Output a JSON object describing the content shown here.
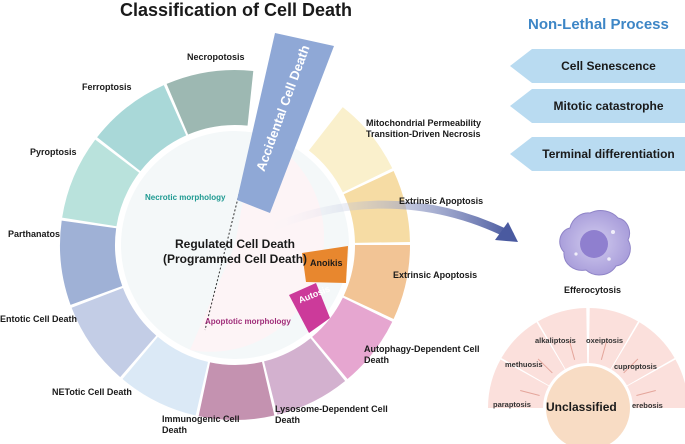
{
  "title": "Classification of Cell Death",
  "center": {
    "line1": "Regulated Cell Death",
    "line2": "(Programmed Cell Death)"
  },
  "morphology": {
    "necrotic": "Necrotic morphology",
    "apoptotic": "Apoptotic morphology"
  },
  "accidental": "Accidental Cell Death",
  "necrotic_types": [
    "Necropotosis",
    "Ferroptosis",
    "Pyroptosis",
    "Parthanatos",
    "Entotic Cell Death",
    "NETotic Cell Death"
  ],
  "apoptotic_types": {
    "mpt": "Mitochondrial Permeability Transition-Driven Necrosis",
    "extrinsic1": "Extrinsic Apoptosis",
    "extrinsic2": "Extrinsic Apoptosis",
    "autophagy": "Autophagy-Dependent Cell Death",
    "lysosome": "Lysosome-Dependent Cell Death",
    "immunogenic": "Immunogenic Cell Death"
  },
  "tags": {
    "anoikis": "Anoikis",
    "autosis": "Autosis"
  },
  "non_lethal": {
    "title": "Non-Lethal Process",
    "items": [
      "Cell Senescence",
      "Mitotic catastrophe",
      "Terminal differentiation"
    ]
  },
  "efferocytosis": "Efferocytosis",
  "unclassified": {
    "center": "Unclassified",
    "items": [
      "paraptosis",
      "methuosis",
      "alkaliptosis",
      "oxeiptosis",
      "cuproptosis",
      "erebosis"
    ]
  },
  "colors": {
    "necroptosis": "#9db8b2",
    "ferroptosis": "#a9d8d8",
    "pyroptosis": "#b9e2dc",
    "parthanatos": "#9fb1d6",
    "entotic": "#c3cde6",
    "netotic": "#dbe9f6",
    "immunogenic": "#c492b0",
    "lysosome": "#d3b1cf",
    "autophagy": "#e6a6d0",
    "extrinsic2": "#f2c495",
    "extrinsic1": "#f6dca4",
    "mpt": "#faf0cc",
    "accidental": "#8fa8d6",
    "anoikis": "#e8872e",
    "autosis": "#cc3a9a",
    "non_lethal_box": "#b9dbf1",
    "arrow": "#4a5aa0",
    "cell": "#b9aee0",
    "unclassified_fan": "#fbe0dc",
    "unclassified_center": "#f8dcc4"
  }
}
